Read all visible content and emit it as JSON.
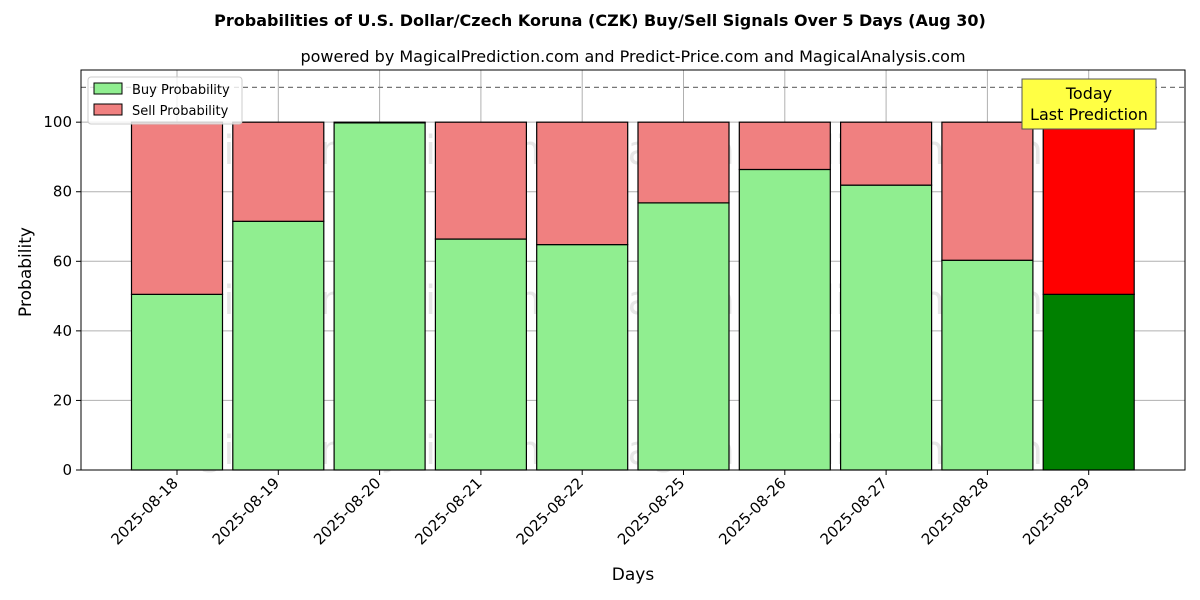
{
  "chart_data": {
    "type": "bar",
    "stacked": true,
    "title": "Probabilities of U.S. Dollar/Czech Koruna (CZK) Buy/Sell Signals Over 5 Days (Aug 30)",
    "subtitle": "powered by MagicalPrediction.com and Predict-Price.com and MagicalAnalysis.com",
    "xlabel": "Days",
    "ylabel": "Probability",
    "ylim": [
      0,
      115
    ],
    "yticks": [
      0,
      20,
      40,
      60,
      80,
      100
    ],
    "ytick_labels": [
      "0",
      "20",
      "40",
      "60",
      "80",
      "100"
    ],
    "grid": true,
    "reference_line": 110,
    "categories": [
      "2025-08-18",
      "2025-08-19",
      "2025-08-20",
      "2025-08-21",
      "2025-08-22",
      "2025-08-25",
      "2025-08-26",
      "2025-08-27",
      "2025-08-28",
      "2025-08-29"
    ],
    "series": [
      {
        "name": "Buy Probability",
        "values": [
          50.5,
          71.5,
          99.8,
          66.4,
          64.8,
          76.8,
          86.4,
          81.9,
          60.3,
          50.5
        ]
      },
      {
        "name": "Sell Probability",
        "values": [
          49.5,
          28.5,
          0.2,
          33.6,
          35.2,
          23.2,
          13.6,
          18.1,
          39.7,
          49.5
        ]
      }
    ],
    "colors": {
      "buy": "#90ee90",
      "sell": "#f08080",
      "buy_highlight": "#008000",
      "sell_highlight": "#ff0000",
      "annotation_bg": "#ffff44"
    },
    "highlight_index": 9,
    "legend": {
      "position": "top-left",
      "entries": [
        "Buy Probability",
        "Sell Probability"
      ]
    },
    "annotation": {
      "line1": "Today",
      "line2": "Last Prediction"
    },
    "watermarks": [
      "MagicalAnalysis.com",
      "MagicalPrediction.com"
    ]
  }
}
